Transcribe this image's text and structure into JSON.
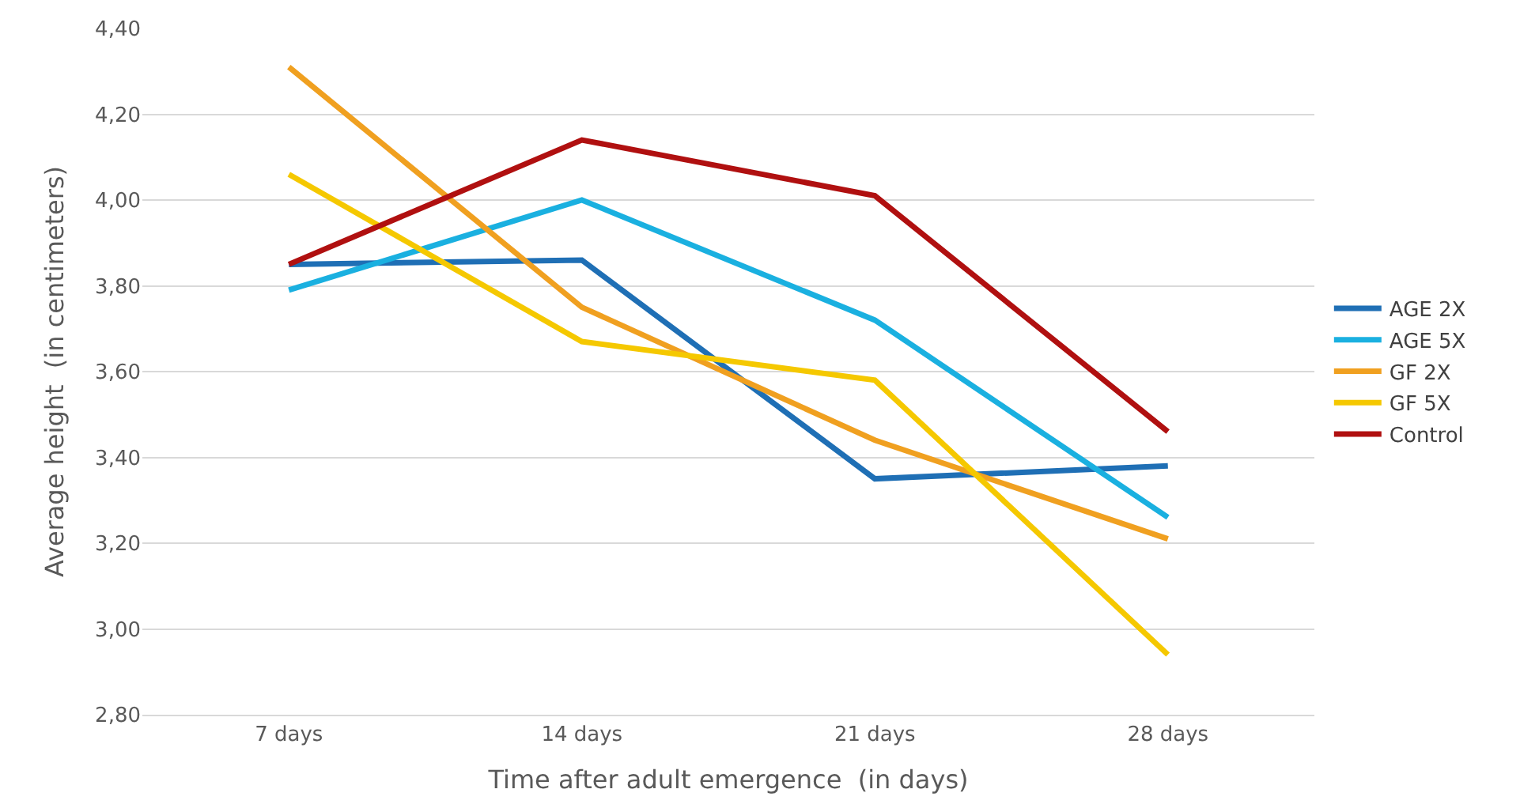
{
  "chart_data": {
    "type": "line",
    "xlabel": "Time after adult emergence  (in days)",
    "ylabel": "Average height  (in centimeters)",
    "categories": [
      "7 days",
      "14 days",
      "21 days",
      "28 days"
    ],
    "series": [
      {
        "name": "AGE 2X",
        "color": "#1f6fb5",
        "values": [
          3.85,
          3.86,
          3.35,
          3.38
        ]
      },
      {
        "name": "AGE 5X",
        "color": "#1ab0e0",
        "values": [
          3.79,
          4.0,
          3.72,
          3.26
        ]
      },
      {
        "name": "GF 2X",
        "color": "#f0a020",
        "values": [
          4.31,
          3.75,
          3.44,
          3.21
        ]
      },
      {
        "name": "GF 5X",
        "color": "#f5c800",
        "values": [
          4.06,
          3.67,
          3.58,
          2.94
        ]
      },
      {
        "name": "Control",
        "color": "#b01010",
        "values": [
          3.85,
          4.14,
          4.01,
          3.46
        ]
      }
    ],
    "ylim": [
      2.8,
      4.4
    ],
    "yticks": [
      {
        "value": 2.8,
        "label": "2,80"
      },
      {
        "value": 3.0,
        "label": "3,00"
      },
      {
        "value": 3.2,
        "label": "3,20"
      },
      {
        "value": 3.4,
        "label": "3,40"
      },
      {
        "value": 3.6,
        "label": "3,60"
      },
      {
        "value": 3.8,
        "label": "3,80"
      },
      {
        "value": 4.0,
        "label": "4,00"
      },
      {
        "value": 4.2,
        "label": "4,20"
      },
      {
        "value": 4.4,
        "label": "4,40"
      }
    ],
    "grid": "y",
    "legend": "right",
    "marker": "none",
    "line_style": "solid"
  }
}
